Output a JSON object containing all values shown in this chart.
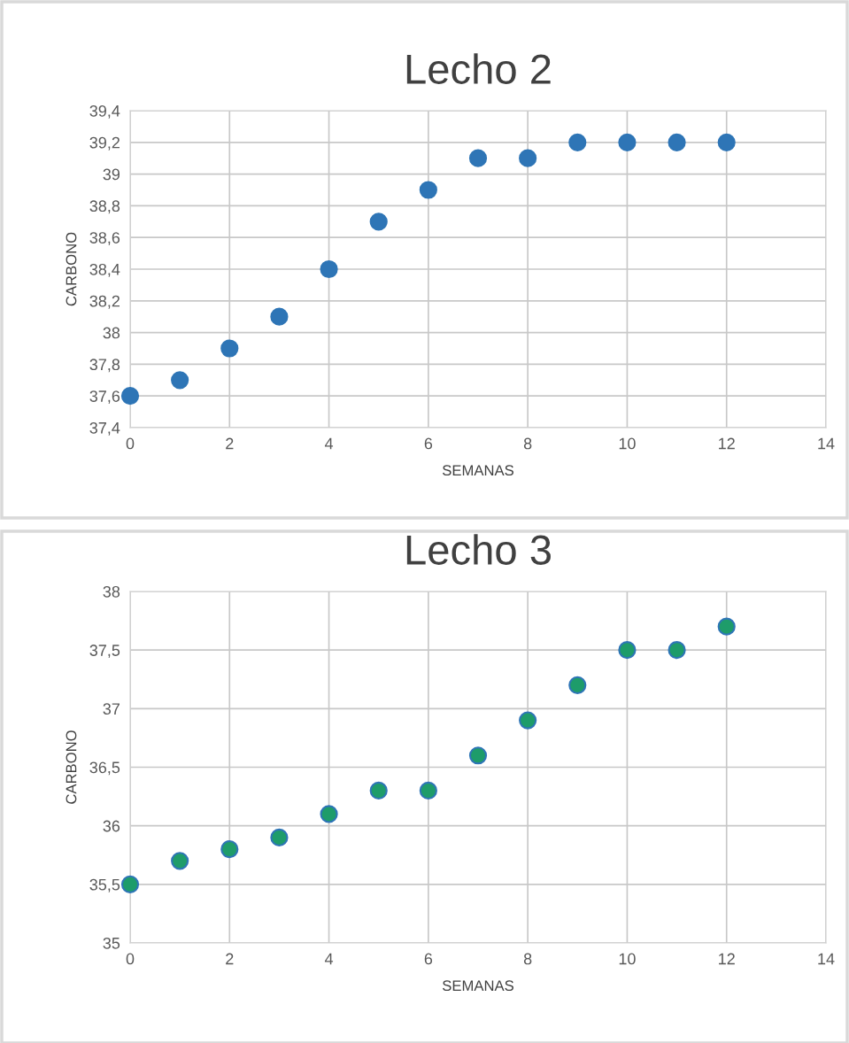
{
  "chart_data": [
    {
      "type": "scatter",
      "title": "Lecho 2",
      "xlabel": "SEMANAS",
      "ylabel": "CARBONO",
      "x": [
        0,
        1,
        2,
        3,
        4,
        5,
        6,
        7,
        8,
        9,
        10,
        11,
        12
      ],
      "series": [
        {
          "color": "#2e75b6",
          "values": [
            37.6,
            37.7,
            37.9,
            38.1,
            38.4,
            38.7,
            38.9,
            39.1,
            39.1,
            39.2,
            39.2,
            39.2,
            39.2
          ]
        }
      ],
      "xlim": [
        0,
        14
      ],
      "xticks": [
        0,
        2,
        4,
        6,
        8,
        10,
        12,
        14
      ],
      "ylim": [
        37.4,
        39.4
      ],
      "yticks": [
        {
          "value": 37.4,
          "label": "37,4"
        },
        {
          "value": 37.6,
          "label": "37,6"
        },
        {
          "value": 37.8,
          "label": "37,8"
        },
        38,
        {
          "value": 38.2,
          "label": "38,2"
        },
        {
          "value": 38.4,
          "label": "38,4"
        },
        {
          "value": 38.6,
          "label": "38,6"
        },
        {
          "value": 38.8,
          "label": "38,8"
        },
        39,
        {
          "value": 39.2,
          "label": "39,2"
        },
        {
          "value": 39.4,
          "label": "39,4"
        }
      ],
      "grid": true,
      "marker": "circle"
    },
    {
      "type": "scatter",
      "title": "Lecho 3",
      "xlabel": "SEMANAS",
      "ylabel": "CARBONO",
      "x": [
        0,
        1,
        2,
        3,
        4,
        5,
        6,
        7,
        8,
        9,
        10,
        11,
        12
      ],
      "series": [
        {
          "color": "#1e9c6a",
          "values": [
            35.5,
            35.7,
            35.8,
            35.9,
            36.1,
            36.3,
            36.3,
            36.6,
            36.9,
            37.2,
            37.5,
            37.5,
            37.7
          ]
        }
      ],
      "xlim": [
        0,
        14
      ],
      "xticks": [
        0,
        2,
        4,
        6,
        8,
        10,
        12,
        14
      ],
      "ylim": [
        35,
        38
      ],
      "yticks": [
        35,
        {
          "value": 35.5,
          "label": "35,5"
        },
        36,
        {
          "value": 36.5,
          "label": "36,5"
        },
        37,
        {
          "value": 37.5,
          "label": "37,5"
        },
        38
      ],
      "grid": true,
      "marker": "circle"
    }
  ]
}
